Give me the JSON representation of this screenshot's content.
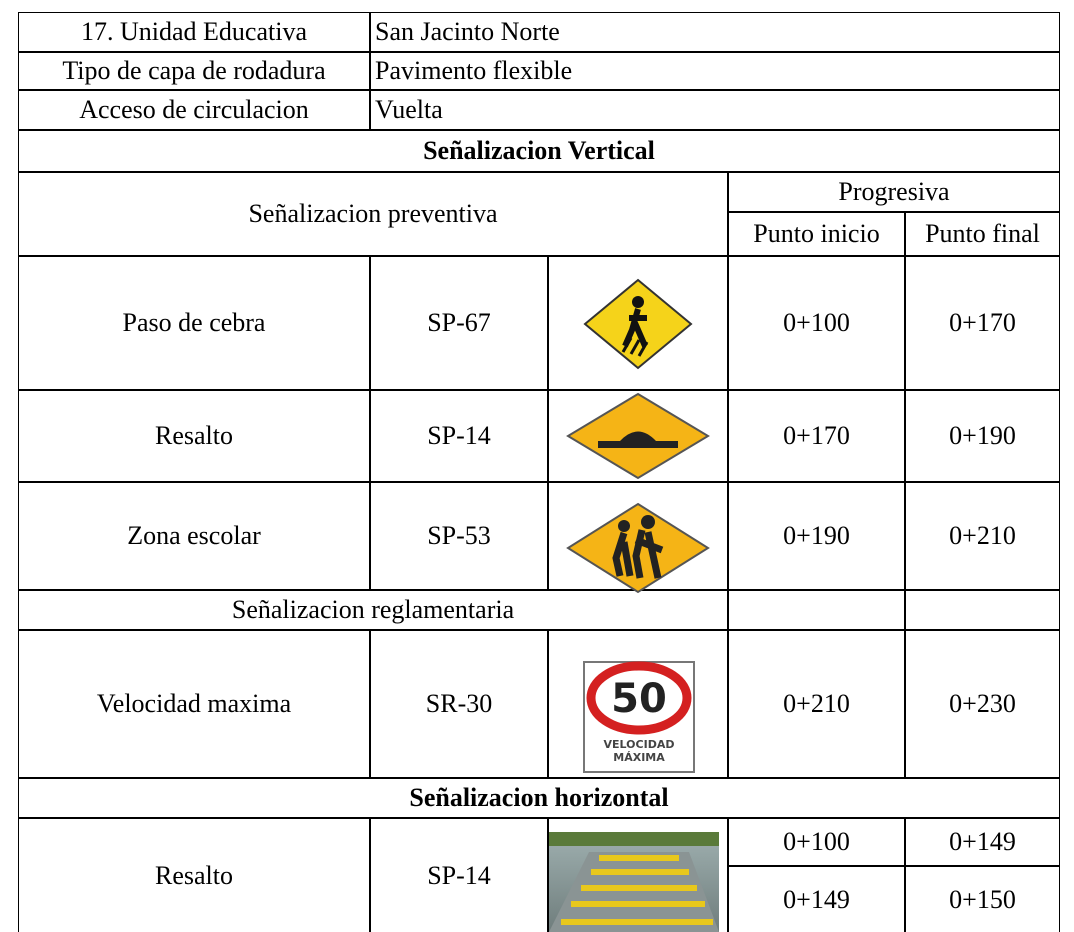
{
  "header": {
    "rows": [
      [
        "17. Unidad Educativa",
        "San Jacinto Norte"
      ],
      [
        "Tipo de capa de rodadura",
        "Pavimento flexible"
      ],
      [
        "Acceso de circulacion",
        "Vuelta"
      ]
    ]
  },
  "vertical": {
    "title": "Señalizacion Vertical",
    "preventive_label": "Señalizacion preventiva",
    "progresiva": "Progresiva",
    "punto_inicio": "Punto inicio",
    "punto_final": "Punto final",
    "rows": [
      {
        "name": "Paso de cebra",
        "code": "SP-67",
        "start": "0+100",
        "end": "0+170"
      },
      {
        "name": "Resalto",
        "code": "SP-14",
        "start": "0+170",
        "end": "0+190"
      },
      {
        "name": "Zona escolar",
        "code": "SP-53",
        "start": "0+190",
        "end": "0+210"
      }
    ],
    "regulatory_label": "Señalizacion reglamentaria",
    "regulatory_rows": [
      {
        "name": "Velocidad maxima",
        "code": "SR-30",
        "start": "0+210",
        "end": "0+230"
      }
    ],
    "speed_sign": {
      "number": "50",
      "line1": "VELOCIDAD",
      "line2": "MÁXIMA"
    }
  },
  "horizontal": {
    "title": "Señalizacion horizontal",
    "rows": [
      {
        "name": "Resalto",
        "code": "SP-14",
        "ranges": [
          [
            "0+100",
            "0+149"
          ],
          [
            "0+149",
            "0+150"
          ]
        ]
      }
    ]
  }
}
